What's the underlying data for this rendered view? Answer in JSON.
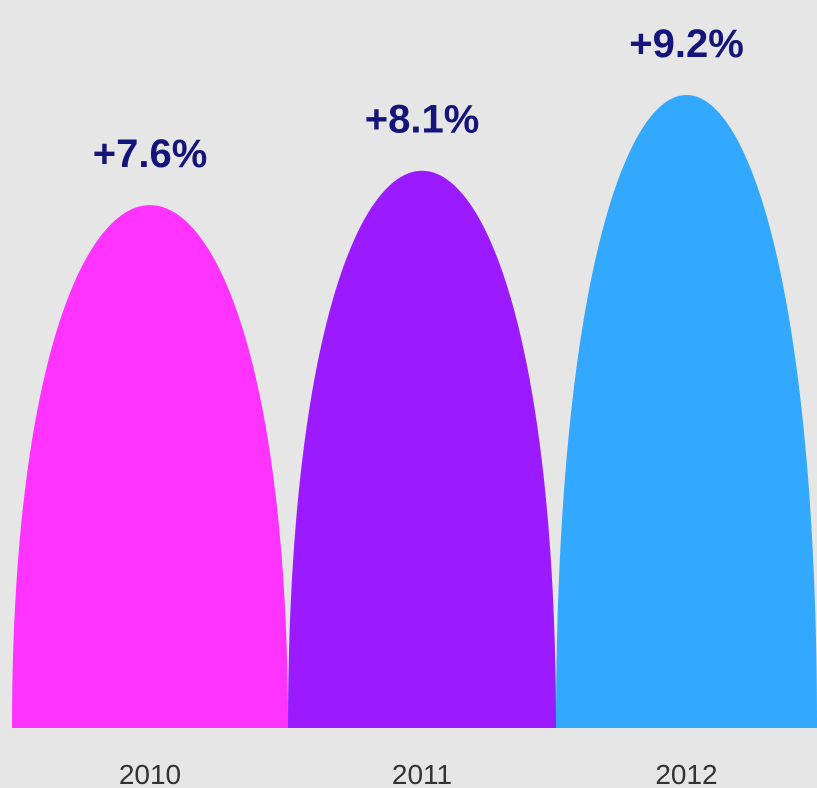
{
  "chart_data": {
    "type": "bar",
    "categories": [
      "2010",
      "2011",
      "2012"
    ],
    "values": [
      7.6,
      8.1,
      9.2
    ],
    "value_labels": [
      "+7.6%",
      "+8.1%",
      "+9.2%"
    ],
    "colors": [
      "#ff33ff",
      "#9b1aff",
      "#33a8ff"
    ]
  }
}
